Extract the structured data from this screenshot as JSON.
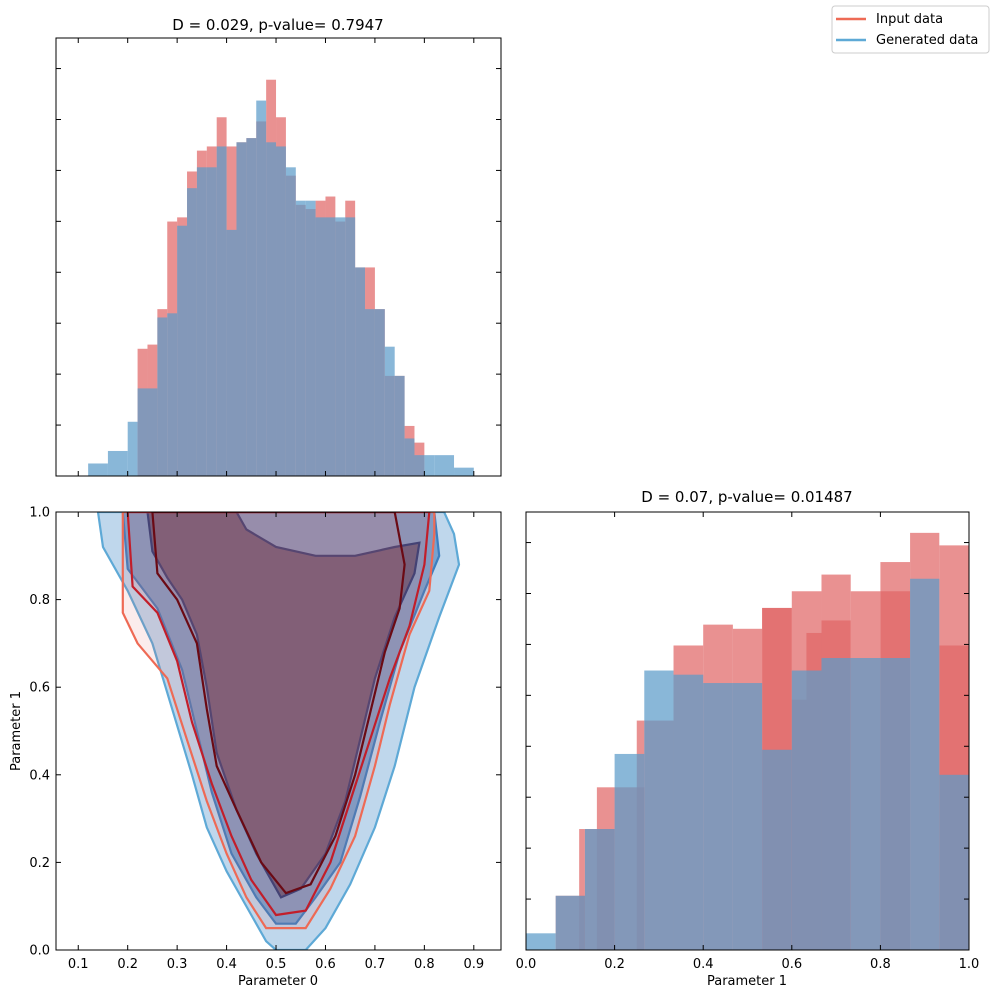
{
  "figure": {
    "colors": {
      "input": "#e06666",
      "input_line": "#ee6a55",
      "generated": "#5b9bc9",
      "generated_line": "#5ea9d6",
      "overlap": "#85849f"
    },
    "legend": {
      "placement": "top-right",
      "entries": [
        "Input data",
        "Generated data"
      ]
    }
  },
  "chart_data": [
    {
      "id": "param0-hist",
      "type": "bar",
      "title": "D = 0.029, p-value= 0.7947",
      "xlabel": "",
      "ylabel": "",
      "xlim": [
        0.055,
        0.955
      ],
      "ylim": [
        0,
        1.0
      ],
      "tick_values": [
        0.1,
        0.2,
        0.3,
        0.4,
        0.5,
        0.6,
        0.7,
        0.8,
        0.9
      ],
      "series": [
        {
          "name": "Input data",
          "bin_edges": [
            0.12,
            0.16,
            0.2,
            0.22,
            0.24,
            0.26,
            0.28,
            0.3,
            0.32,
            0.34,
            0.36,
            0.38,
            0.4,
            0.42,
            0.44,
            0.46,
            0.48,
            0.5,
            0.52,
            0.54,
            0.56,
            0.58,
            0.6,
            0.62,
            0.64,
            0.66,
            0.68,
            0.7,
            0.72,
            0.74,
            0.76,
            0.78,
            0.8,
            0.82,
            0.86,
            0.9
          ],
          "values": [
            0.0,
            0.0,
            0.0,
            0.305,
            0.315,
            0.4,
            0.61,
            0.62,
            0.73,
            0.78,
            0.79,
            0.86,
            0.79,
            0.8,
            0.81,
            0.85,
            0.95,
            0.86,
            0.72,
            0.65,
            0.64,
            0.66,
            0.67,
            0.61,
            0.66,
            0.5,
            0.5,
            0.4,
            0.24,
            0.24,
            0.12,
            0.08,
            0.0,
            0.0,
            0.0
          ]
        },
        {
          "name": "Generated data",
          "bin_edges": [
            0.12,
            0.16,
            0.2,
            0.22,
            0.24,
            0.26,
            0.28,
            0.3,
            0.32,
            0.34,
            0.36,
            0.38,
            0.4,
            0.42,
            0.44,
            0.46,
            0.48,
            0.5,
            0.52,
            0.54,
            0.56,
            0.58,
            0.6,
            0.62,
            0.64,
            0.66,
            0.68,
            0.7,
            0.72,
            0.74,
            0.76,
            0.78,
            0.8,
            0.82,
            0.86,
            0.9
          ],
          "values": [
            0.03,
            0.06,
            0.13,
            0.21,
            0.21,
            0.38,
            0.39,
            0.6,
            0.69,
            0.74,
            0.74,
            0.79,
            0.59,
            0.8,
            0.81,
            0.9,
            0.8,
            0.79,
            0.74,
            0.66,
            0.66,
            0.62,
            0.62,
            0.62,
            0.62,
            0.5,
            0.4,
            0.4,
            0.31,
            0.24,
            0.09,
            0.05,
            0.05,
            0.05,
            0.02
          ]
        }
      ]
    },
    {
      "id": "param1-hist",
      "type": "bar",
      "title": "D = 0.07, p-value= 0.01487",
      "xlabel": "Parameter 1",
      "ylabel": "",
      "xlim": [
        0.0,
        1.0
      ],
      "ylim": [
        0,
        1.0
      ],
      "tick_values": [
        0.0,
        0.2,
        0.4,
        0.6,
        0.8,
        1.0
      ],
      "tick_labels": [
        "0.0",
        "0.2",
        "0.4",
        "0.6",
        "0.8",
        "1.0"
      ],
      "series": [
        {
          "name": "Input data",
          "bin_edges": [
            0.0,
            0.067,
            0.133,
            0.2,
            0.267,
            0.333,
            0.4,
            0.467,
            0.533,
            0.6,
            0.667,
            0.733,
            0.8,
            0.867,
            0.933,
            1.0
          ],
          "values": [
            0.0,
            0.13,
            0.29,
            0.39,
            0.55,
            0.73,
            0.78,
            0.77,
            0.82,
            0.86,
            0.9,
            0.86,
            0.93,
            1.0,
            0.97
          ],
          "leading_steps": [
            {
              "x": [
                0.12,
                0.133
              ],
              "value": 0.29
            },
            {
              "x": [
                0.16,
                0.2
              ],
              "value": 0.39
            },
            {
              "x": [
                0.25,
                0.267
              ],
              "value": 0.55
            },
            {
              "x": [
                0.533,
                0.6
              ],
              "value": 0.82
            },
            {
              "x": [
                0.6,
                0.633
              ],
              "value": 0.6
            },
            {
              "x": [
                0.633,
                0.667
              ],
              "value": 0.76
            },
            {
              "x": [
                0.667,
                0.733
              ],
              "value": 0.79
            },
            {
              "x": [
                0.8,
                0.867
              ],
              "value": 0.86
            },
            {
              "x": [
                0.933,
                1.0
              ],
              "value": 0.73
            }
          ]
        },
        {
          "name": "Generated data",
          "bin_edges": [
            0.0,
            0.067,
            0.133,
            0.2,
            0.267,
            0.333,
            0.4,
            0.467,
            0.533,
            0.6,
            0.667,
            0.733,
            0.8,
            0.867,
            0.933,
            1.0
          ],
          "values": [
            0.04,
            0.13,
            0.29,
            0.47,
            0.67,
            0.66,
            0.64,
            0.64,
            0.48,
            0.67,
            0.7,
            0.7,
            0.7,
            0.89,
            0.42
          ]
        }
      ]
    },
    {
      "id": "contour-2d",
      "type": "contour",
      "title": "",
      "xlabel": "Parameter 0",
      "ylabel": "Parameter 1",
      "xlim": [
        0.055,
        0.955
      ],
      "ylim": [
        0.0,
        1.0
      ],
      "tick_values_x": [
        0.1,
        0.2,
        0.3,
        0.4,
        0.5,
        0.6,
        0.7,
        0.8,
        0.9
      ],
      "tick_values_y": [
        0.0,
        0.2,
        0.4,
        0.6,
        0.8,
        1.0
      ],
      "tick_labels_y": [
        "0.0",
        "0.2",
        "0.4",
        "0.6",
        "0.8",
        "1.0"
      ],
      "series": [
        {
          "name": "Generated data",
          "levels": [
            {
              "level": 1,
              "fill": "#b8d3ea",
              "stroke": "#5ea9d6",
              "points": [
                [
                  0.14,
                  1.0
                ],
                [
                  0.15,
                  0.92
                ],
                [
                  0.2,
                  0.82
                ],
                [
                  0.25,
                  0.7
                ],
                [
                  0.29,
                  0.55
                ],
                [
                  0.33,
                  0.4
                ],
                [
                  0.36,
                  0.28
                ],
                [
                  0.4,
                  0.18
                ],
                [
                  0.45,
                  0.08
                ],
                [
                  0.48,
                  0.02
                ],
                [
                  0.5,
                  0.0
                ],
                [
                  0.56,
                  0.0
                ],
                [
                  0.6,
                  0.05
                ],
                [
                  0.65,
                  0.15
                ],
                [
                  0.7,
                  0.28
                ],
                [
                  0.74,
                  0.42
                ],
                [
                  0.78,
                  0.6
                ],
                [
                  0.83,
                  0.76
                ],
                [
                  0.87,
                  0.88
                ],
                [
                  0.86,
                  0.95
                ],
                [
                  0.84,
                  1.0
                ]
              ]
            },
            {
              "level": 2,
              "fill": "#6f9ccb",
              "stroke": "#3c7fc0",
              "points": [
                [
                  0.19,
                  1.0
                ],
                [
                  0.2,
                  0.87
                ],
                [
                  0.26,
                  0.78
                ],
                [
                  0.31,
                  0.64
                ],
                [
                  0.34,
                  0.5
                ],
                [
                  0.37,
                  0.36
                ],
                [
                  0.41,
                  0.22
                ],
                [
                  0.46,
                  0.12
                ],
                [
                  0.5,
                  0.06
                ],
                [
                  0.54,
                  0.06
                ],
                [
                  0.58,
                  0.12
                ],
                [
                  0.63,
                  0.2
                ],
                [
                  0.67,
                  0.35
                ],
                [
                  0.71,
                  0.52
                ],
                [
                  0.75,
                  0.68
                ],
                [
                  0.8,
                  0.82
                ],
                [
                  0.83,
                  0.9
                ],
                [
                  0.82,
                  1.0
                ]
              ]
            },
            {
              "level": 3,
              "fill": "#54587a",
              "stroke": "#17397a",
              "points": [
                [
                  0.24,
                  1.0
                ],
                [
                  0.25,
                  0.91
                ],
                [
                  0.28,
                  0.85
                ],
                [
                  0.31,
                  0.8
                ],
                [
                  0.34,
                  0.72
                ],
                [
                  0.36,
                  0.6
                ],
                [
                  0.38,
                  0.45
                ],
                [
                  0.42,
                  0.32
                ],
                [
                  0.46,
                  0.22
                ],
                [
                  0.51,
                  0.12
                ],
                [
                  0.55,
                  0.14
                ],
                [
                  0.6,
                  0.22
                ],
                [
                  0.64,
                  0.34
                ],
                [
                  0.67,
                  0.48
                ],
                [
                  0.7,
                  0.62
                ],
                [
                  0.74,
                  0.76
                ],
                [
                  0.78,
                  0.86
                ],
                [
                  0.79,
                  0.93
                ],
                [
                  0.74,
                  0.92
                ],
                [
                  0.66,
                  0.9
                ],
                [
                  0.58,
                  0.9
                ],
                [
                  0.5,
                  0.92
                ],
                [
                  0.44,
                  0.96
                ],
                [
                  0.42,
                  1.0
                ]
              ]
            }
          ]
        },
        {
          "name": "Input data",
          "levels": [
            {
              "level": 1,
              "stroke": "#ee6a55",
              "points": [
                [
                  0.19,
                  1.0
                ],
                [
                  0.19,
                  0.77
                ],
                [
                  0.22,
                  0.7
                ],
                [
                  0.28,
                  0.62
                ],
                [
                  0.32,
                  0.48
                ],
                [
                  0.36,
                  0.34
                ],
                [
                  0.4,
                  0.22
                ],
                [
                  0.44,
                  0.12
                ],
                [
                  0.48,
                  0.05
                ],
                [
                  0.56,
                  0.05
                ],
                [
                  0.61,
                  0.14
                ],
                [
                  0.66,
                  0.26
                ],
                [
                  0.7,
                  0.42
                ],
                [
                  0.73,
                  0.56
                ],
                [
                  0.77,
                  0.72
                ],
                [
                  0.81,
                  0.82
                ],
                [
                  0.82,
                  0.95
                ],
                [
                  0.82,
                  1.0
                ]
              ]
            },
            {
              "level": 2,
              "stroke": "#c21e2a",
              "points": [
                [
                  0.2,
                  1.0
                ],
                [
                  0.21,
                  0.83
                ],
                [
                  0.26,
                  0.77
                ],
                [
                  0.3,
                  0.66
                ],
                [
                  0.33,
                  0.52
                ],
                [
                  0.37,
                  0.38
                ],
                [
                  0.41,
                  0.26
                ],
                [
                  0.45,
                  0.16
                ],
                [
                  0.5,
                  0.08
                ],
                [
                  0.56,
                  0.09
                ],
                [
                  0.61,
                  0.2
                ],
                [
                  0.65,
                  0.34
                ],
                [
                  0.69,
                  0.48
                ],
                [
                  0.73,
                  0.62
                ],
                [
                  0.77,
                  0.74
                ],
                [
                  0.8,
                  0.88
                ],
                [
                  0.81,
                  1.0
                ]
              ]
            },
            {
              "level": 3,
              "stroke": "#6b0a14",
              "points": [
                [
                  0.25,
                  1.0
                ],
                [
                  0.26,
                  0.86
                ],
                [
                  0.3,
                  0.8
                ],
                [
                  0.34,
                  0.7
                ],
                [
                  0.36,
                  0.55
                ],
                [
                  0.38,
                  0.42
                ],
                [
                  0.42,
                  0.32
                ],
                [
                  0.47,
                  0.2
                ],
                [
                  0.52,
                  0.13
                ],
                [
                  0.57,
                  0.15
                ],
                [
                  0.62,
                  0.26
                ],
                [
                  0.66,
                  0.4
                ],
                [
                  0.69,
                  0.54
                ],
                [
                  0.72,
                  0.68
                ],
                [
                  0.75,
                  0.78
                ],
                [
                  0.76,
                  0.88
                ],
                [
                  0.74,
                  1.0
                ]
              ]
            }
          ]
        }
      ]
    }
  ]
}
